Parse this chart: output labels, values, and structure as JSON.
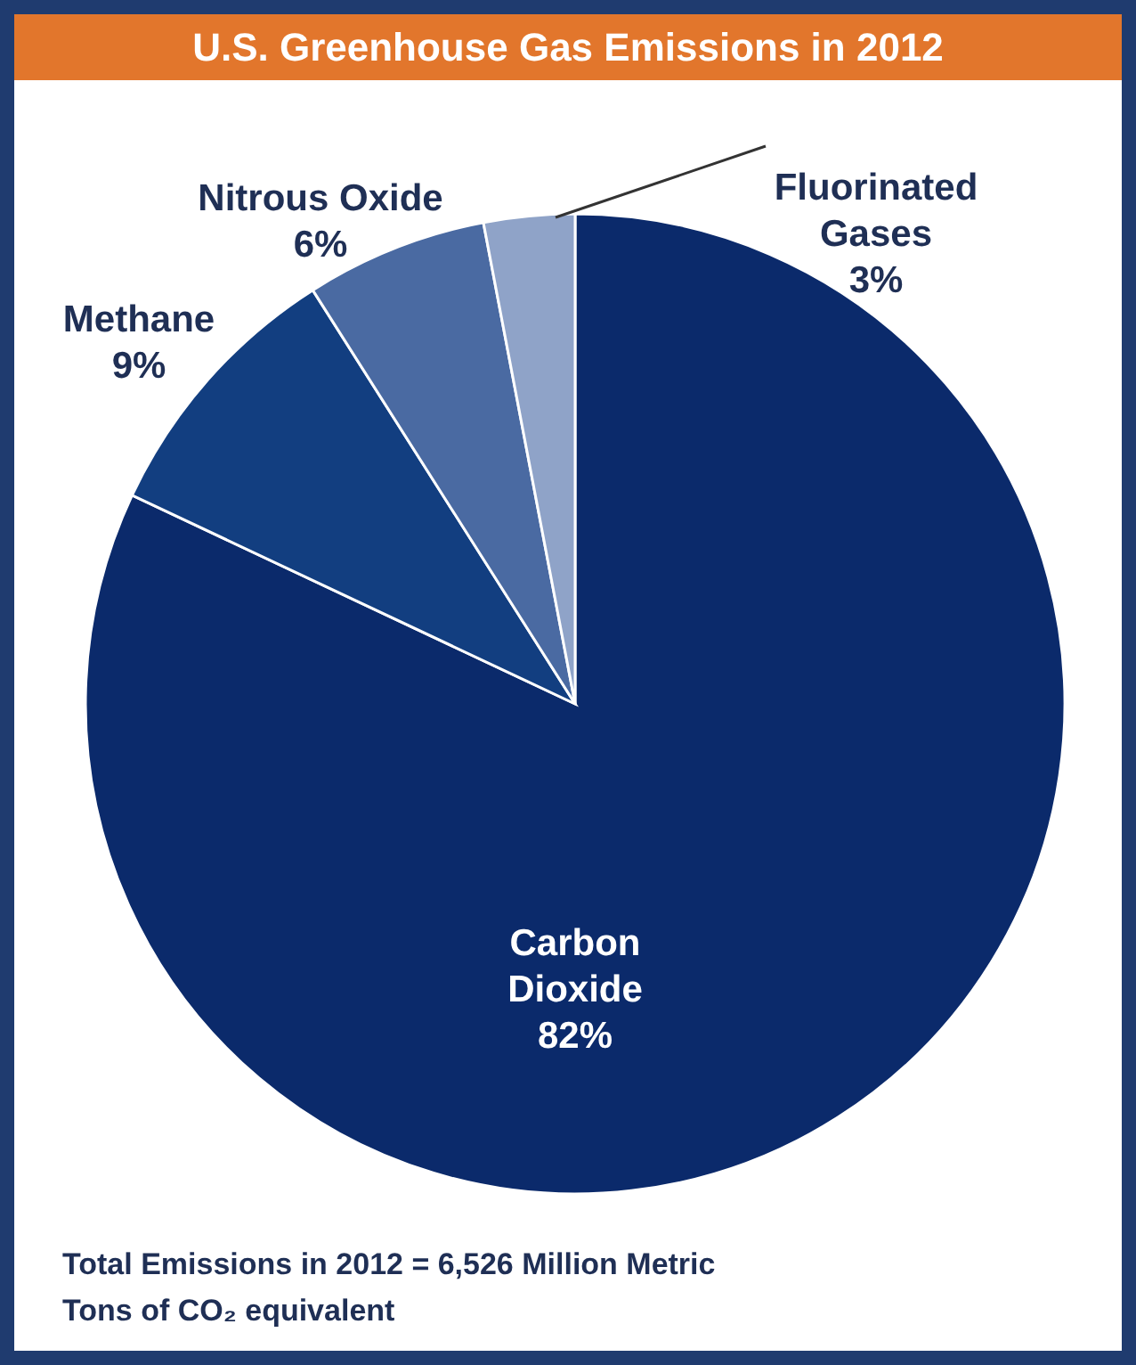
{
  "chart_data": {
    "type": "pie",
    "title": "U.S. Greenhouse Gas Emissions in 2012",
    "categories": [
      "Carbon Dioxide",
      "Methane",
      "Nitrous Oxide",
      "Fluorinated Gases"
    ],
    "values": [
      82,
      9,
      6,
      3
    ],
    "colors": [
      "#0b2a6b",
      "#123e80",
      "#4a6aa2",
      "#8fa3c8"
    ],
    "value_labels": [
      "82%",
      "9%",
      "6%",
      "3%"
    ],
    "annotations": [
      "Total Emissions in 2012 = 6,526 Million Metric Tons of CO₂ equivalent"
    ]
  }
}
